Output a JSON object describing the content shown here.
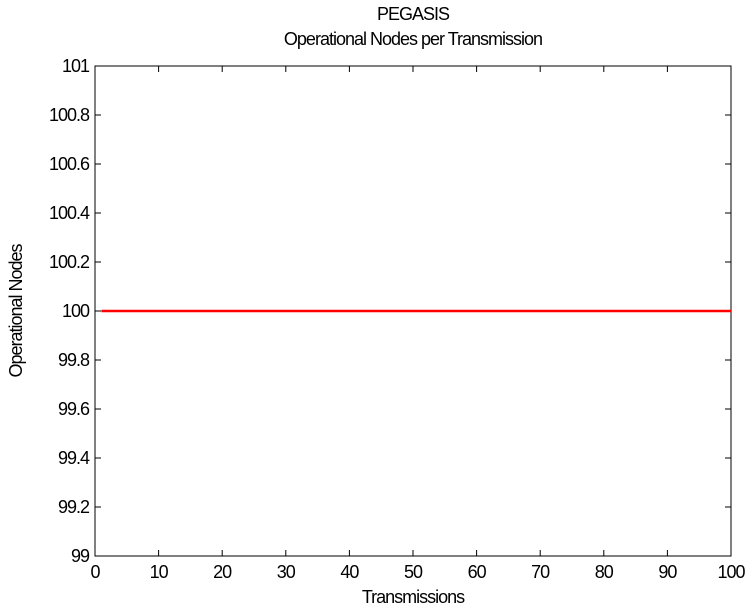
{
  "chart_data": {
    "type": "line",
    "title": "PEGASIS",
    "subtitle": "Operational Nodes per Transmission",
    "xlabel": "Transmissions",
    "ylabel": "Operational Nodes",
    "xlim": [
      0,
      100
    ],
    "ylim": [
      99,
      101
    ],
    "x_ticks": [
      0,
      10,
      20,
      30,
      40,
      50,
      60,
      70,
      80,
      90,
      100
    ],
    "x_tick_labels": [
      "0",
      "10",
      "20",
      "30",
      "40",
      "50",
      "60",
      "70",
      "80",
      "90",
      "100"
    ],
    "y_ticks": [
      99,
      99.2,
      99.4,
      99.6,
      99.8,
      100,
      100.2,
      100.4,
      100.6,
      100.8,
      101
    ],
    "y_tick_labels": [
      "99",
      "99.2",
      "99.4",
      "99.6",
      "99.8",
      "100",
      "100.2",
      "100.4",
      "100.6",
      "100.8",
      "101"
    ],
    "grid": false,
    "series": [
      {
        "color": "#ff0000",
        "x": [
          1,
          100
        ],
        "y": [
          100,
          100
        ]
      }
    ]
  }
}
